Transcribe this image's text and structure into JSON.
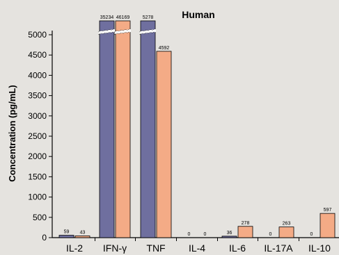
{
  "chart_data": {
    "type": "bar",
    "title": "Human",
    "xlabel": "",
    "ylabel": "Concentration (pg/mL)",
    "ylim": [
      0,
      5000
    ],
    "y_ticks": [
      0,
      500,
      1000,
      1500,
      2000,
      2500,
      3000,
      3500,
      4000,
      4500,
      5000
    ],
    "axis_break": true,
    "grid": false,
    "legend": "none",
    "categories": [
      "IL-2",
      "IFN-γ",
      "TNF",
      "IL-4",
      "IL-6",
      "IL-17A",
      "IL-10"
    ],
    "series": [
      {
        "color": "#6f6f9f",
        "values": [
          59,
          35234,
          5278,
          0,
          36,
          0,
          0
        ]
      },
      {
        "color": "#f4ab86",
        "values": [
          43,
          46169,
          4592,
          0,
          278,
          263,
          597
        ]
      }
    ]
  }
}
